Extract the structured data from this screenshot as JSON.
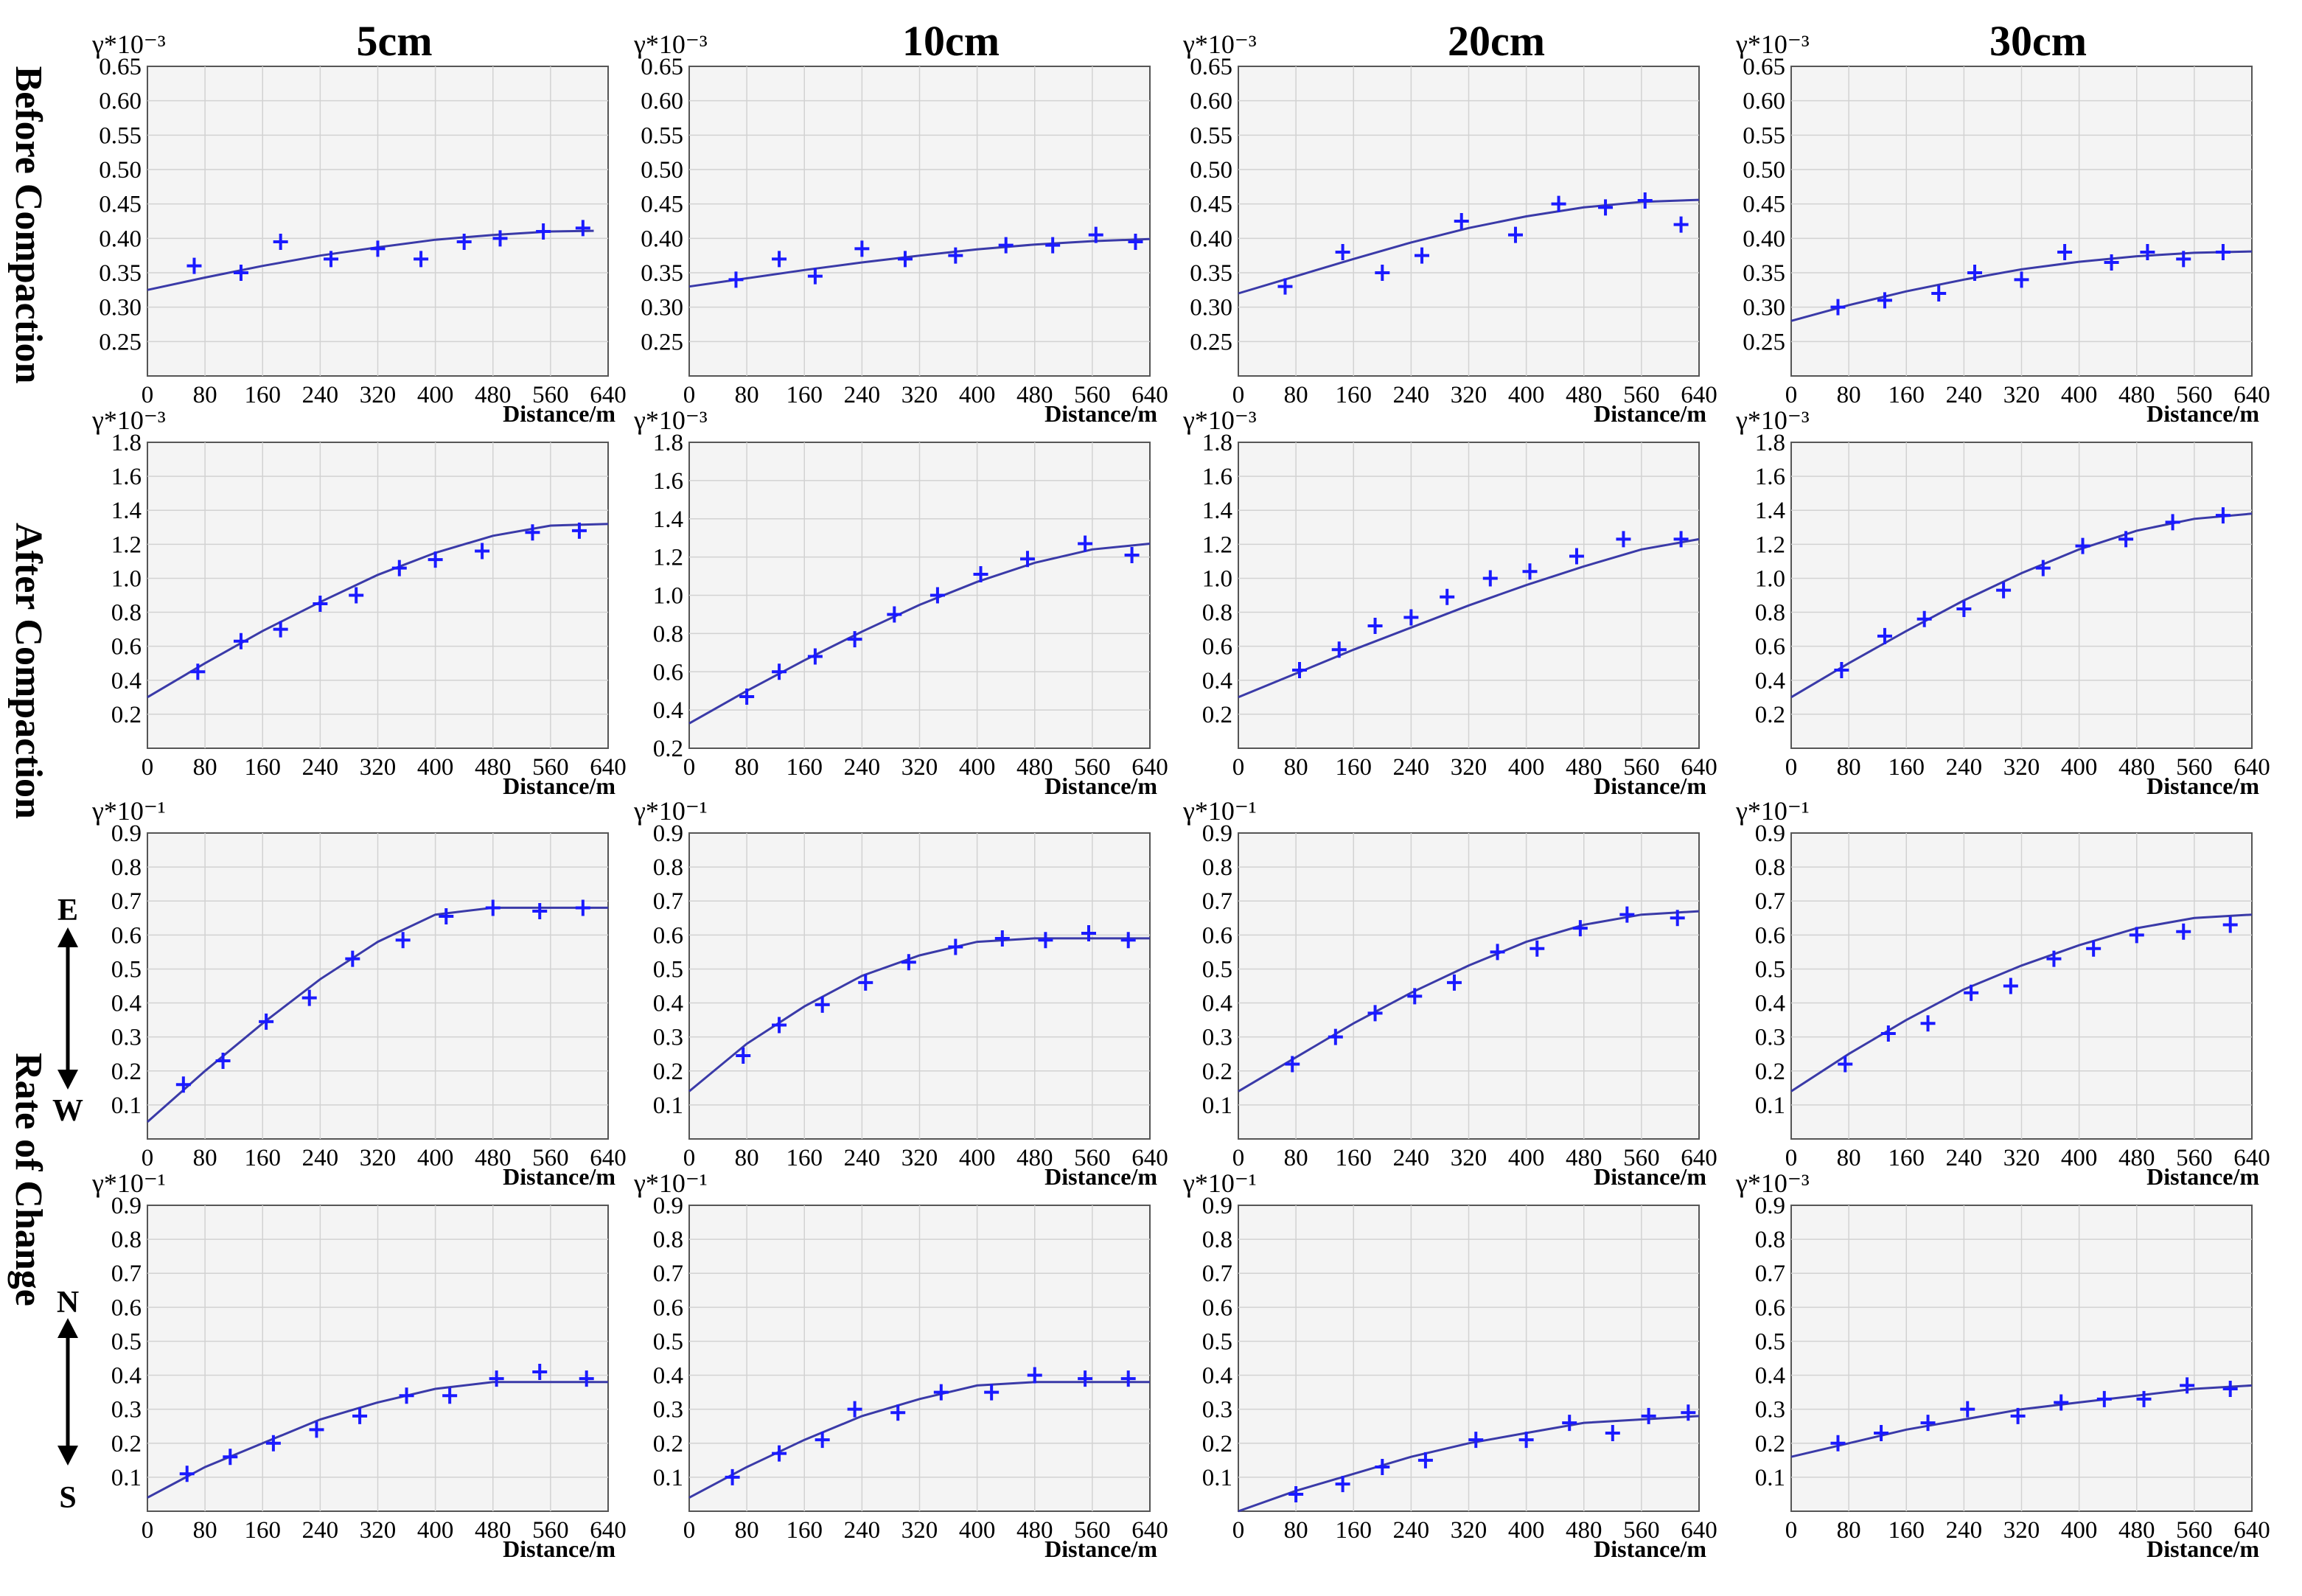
{
  "column_titles": [
    "5cm",
    "10cm",
    "20cm",
    "30cm"
  ],
  "row_labels": {
    "before": "Before Compaction",
    "after": "After Compaction",
    "rate": "Rate of Change"
  },
  "direction_labels": {
    "ew_top": "E",
    "ew_bottom": "W",
    "ns_top": "N",
    "ns_bottom": "S"
  },
  "colors": {
    "series": "#1a1aff",
    "fit_line": "#3a3aa8",
    "plot_bg": "#f4f4f4",
    "grid": "#d2d2d2"
  },
  "chart_data": [
    {
      "type": "scatter",
      "row": 0,
      "col": 0,
      "ylabel": "γ*10⁻³",
      "xlabel": "Distance/m",
      "xticks": [
        "0",
        "80",
        "160",
        "240",
        "320",
        "400",
        "480",
        "560",
        "640"
      ],
      "xlim": [
        0,
        640
      ],
      "yticks": [
        "0.25",
        "0.30",
        "0.35",
        "0.40",
        "0.45",
        "0.50",
        "0.55",
        "0.60",
        "0.65"
      ],
      "ylim": [
        0.2,
        0.65
      ],
      "x": [
        65,
        130,
        185,
        255,
        320,
        380,
        440,
        490,
        550,
        605
      ],
      "y": [
        0.36,
        0.35,
        0.395,
        0.37,
        0.385,
        0.37,
        0.395,
        0.4,
        0.41,
        0.415
      ],
      "fit_x": [
        0,
        80,
        160,
        240,
        320,
        400,
        480,
        560,
        620
      ],
      "fit_y": [
        0.325,
        0.343,
        0.36,
        0.375,
        0.387,
        0.398,
        0.405,
        0.41,
        0.411
      ]
    },
    {
      "type": "scatter",
      "row": 0,
      "col": 1,
      "ylabel": "γ*10⁻³",
      "xlabel": "Distance/m",
      "xticks": [
        "0",
        "80",
        "160",
        "240",
        "320",
        "400",
        "480",
        "560",
        "640"
      ],
      "xlim": [
        0,
        640
      ],
      "yticks": [
        "0.25",
        "0.30",
        "0.35",
        "0.40",
        "0.45",
        "0.50",
        "0.55",
        "0.60",
        "0.65"
      ],
      "ylim": [
        0.2,
        0.65
      ],
      "x": [
        65,
        125,
        175,
        240,
        300,
        370,
        440,
        505,
        565,
        620
      ],
      "y": [
        0.34,
        0.37,
        0.345,
        0.385,
        0.37,
        0.375,
        0.39,
        0.39,
        0.405,
        0.395
      ],
      "fit_x": [
        0,
        80,
        160,
        240,
        320,
        400,
        480,
        560,
        640
      ],
      "fit_y": [
        0.33,
        0.342,
        0.354,
        0.365,
        0.375,
        0.384,
        0.391,
        0.396,
        0.399
      ]
    },
    {
      "type": "scatter",
      "row": 0,
      "col": 2,
      "ylabel": "γ*10⁻³",
      "xlabel": "Distance/m",
      "xticks": [
        "0",
        "80",
        "160",
        "240",
        "320",
        "400",
        "480",
        "560",
        "640"
      ],
      "xlim": [
        0,
        640
      ],
      "yticks": [
        "0.25",
        "0.30",
        "0.35",
        "0.40",
        "0.45",
        "0.50",
        "0.55",
        "0.60",
        "0.65"
      ],
      "ylim": [
        0.2,
        0.65
      ],
      "x": [
        65,
        145,
        200,
        255,
        310,
        385,
        445,
        510,
        565,
        615
      ],
      "y": [
        0.33,
        0.38,
        0.35,
        0.375,
        0.425,
        0.405,
        0.45,
        0.445,
        0.455,
        0.42
      ],
      "fit_x": [
        0,
        80,
        160,
        240,
        320,
        400,
        480,
        560,
        640
      ],
      "fit_y": [
        0.32,
        0.345,
        0.37,
        0.394,
        0.415,
        0.432,
        0.445,
        0.453,
        0.456
      ]
    },
    {
      "type": "scatter",
      "row": 0,
      "col": 3,
      "ylabel": "γ*10⁻³",
      "xlabel": "Distance/m",
      "xticks": [
        "0",
        "80",
        "160",
        "240",
        "320",
        "400",
        "480",
        "560",
        "640"
      ],
      "xlim": [
        0,
        640
      ],
      "yticks": [
        "0.25",
        "0.30",
        "0.35",
        "0.40",
        "0.45",
        "0.50",
        "0.55",
        "0.60",
        "0.65"
      ],
      "ylim": [
        0.2,
        0.65
      ],
      "x": [
        65,
        130,
        205,
        255,
        320,
        380,
        445,
        495,
        545,
        600
      ],
      "y": [
        0.3,
        0.31,
        0.32,
        0.35,
        0.34,
        0.38,
        0.365,
        0.38,
        0.37,
        0.38
      ],
      "fit_x": [
        0,
        80,
        160,
        240,
        320,
        400,
        480,
        560,
        640
      ],
      "fit_y": [
        0.28,
        0.303,
        0.323,
        0.34,
        0.355,
        0.366,
        0.374,
        0.379,
        0.381
      ]
    },
    {
      "type": "scatter",
      "row": 1,
      "col": 0,
      "ylabel": "γ*10⁻³",
      "xlabel": "Distance/m",
      "xticks": [
        "0",
        "80",
        "160",
        "240",
        "320",
        "400",
        "480",
        "560",
        "640"
      ],
      "xlim": [
        0,
        640
      ],
      "yticks": [
        "0.2",
        "0.4",
        "0.6",
        "0.8",
        "1.0",
        "1.2",
        "1.4",
        "1.6",
        "1.8"
      ],
      "ylim": [
        0,
        1.8
      ],
      "x": [
        70,
        130,
        185,
        240,
        290,
        350,
        400,
        465,
        535,
        600
      ],
      "y": [
        0.45,
        0.63,
        0.7,
        0.85,
        0.9,
        1.06,
        1.11,
        1.16,
        1.27,
        1.28
      ],
      "fit_x": [
        0,
        80,
        160,
        240,
        320,
        400,
        480,
        560,
        640
      ],
      "fit_y": [
        0.3,
        0.5,
        0.69,
        0.86,
        1.02,
        1.15,
        1.25,
        1.31,
        1.32
      ]
    },
    {
      "type": "scatter",
      "row": 1,
      "col": 1,
      "ylabel": "γ*10⁻³",
      "xlabel": "Distance/m",
      "xticks": [
        "0",
        "80",
        "160",
        "240",
        "320",
        "400",
        "480",
        "560",
        "640"
      ],
      "xlim": [
        0,
        640
      ],
      "yticks": [
        "0.2",
        "0.4",
        "0.6",
        "0.8",
        "1.0",
        "1.2",
        "1.4",
        "1.6",
        "1.8"
      ],
      "ylim": [
        0.2,
        1.8
      ],
      "x": [
        80,
        125,
        175,
        230,
        285,
        345,
        405,
        470,
        550,
        615
      ],
      "y": [
        0.47,
        0.6,
        0.68,
        0.77,
        0.9,
        1.0,
        1.11,
        1.19,
        1.27,
        1.21
      ],
      "fit_x": [
        0,
        80,
        160,
        240,
        320,
        400,
        480,
        560,
        640
      ],
      "fit_y": [
        0.33,
        0.5,
        0.66,
        0.81,
        0.95,
        1.07,
        1.17,
        1.24,
        1.27
      ]
    },
    {
      "type": "scatter",
      "row": 1,
      "col": 2,
      "ylabel": "γ*10⁻³",
      "xlabel": "Distance/m",
      "xticks": [
        "0",
        "80",
        "160",
        "240",
        "320",
        "400",
        "480",
        "560",
        "640"
      ],
      "xlim": [
        0,
        640
      ],
      "yticks": [
        "0.2",
        "0.4",
        "0.6",
        "0.8",
        "1.0",
        "1.2",
        "1.4",
        "1.6",
        "1.8"
      ],
      "ylim": [
        0,
        1.8
      ],
      "x": [
        85,
        140,
        190,
        240,
        290,
        350,
        405,
        470,
        535,
        615
      ],
      "y": [
        0.46,
        0.58,
        0.72,
        0.77,
        0.89,
        1.0,
        1.04,
        1.13,
        1.23,
        1.23
      ],
      "fit_x": [
        0,
        80,
        160,
        240,
        320,
        400,
        480,
        560,
        640
      ],
      "fit_y": [
        0.3,
        0.44,
        0.58,
        0.71,
        0.84,
        0.96,
        1.07,
        1.17,
        1.23
      ]
    },
    {
      "type": "scatter",
      "row": 1,
      "col": 3,
      "ylabel": "γ*10⁻³",
      "xlabel": "Distance/m",
      "xticks": [
        "0",
        "80",
        "160",
        "240",
        "320",
        "400",
        "480",
        "560",
        "640"
      ],
      "xlim": [
        0,
        640
      ],
      "yticks": [
        "0.2",
        "0.4",
        "0.6",
        "0.8",
        "1.0",
        "1.2",
        "1.4",
        "1.6",
        "1.8"
      ],
      "ylim": [
        0,
        1.8
      ],
      "x": [
        70,
        130,
        185,
        240,
        295,
        350,
        405,
        465,
        530,
        600
      ],
      "y": [
        0.46,
        0.66,
        0.76,
        0.82,
        0.93,
        1.06,
        1.19,
        1.23,
        1.33,
        1.37
      ],
      "fit_x": [
        0,
        80,
        160,
        240,
        320,
        400,
        480,
        560,
        640
      ],
      "fit_y": [
        0.3,
        0.5,
        0.69,
        0.87,
        1.03,
        1.17,
        1.28,
        1.35,
        1.38
      ]
    },
    {
      "type": "scatter",
      "row": 2,
      "col": 0,
      "ylabel": "γ*10⁻¹",
      "xlabel": "Distance/m",
      "xticks": [
        "0",
        "80",
        "160",
        "240",
        "320",
        "400",
        "480",
        "560",
        "640"
      ],
      "xlim": [
        0,
        640
      ],
      "yticks": [
        "0.1",
        "0.2",
        "0.3",
        "0.4",
        "0.5",
        "0.6",
        "0.7",
        "0.8",
        "0.9"
      ],
      "ylim": [
        0,
        0.9
      ],
      "x": [
        50,
        105,
        165,
        225,
        285,
        355,
        415,
        480,
        545,
        605
      ],
      "y": [
        0.16,
        0.23,
        0.345,
        0.415,
        0.53,
        0.585,
        0.655,
        0.68,
        0.67,
        0.68
      ],
      "fit_x": [
        0,
        80,
        160,
        240,
        320,
        400,
        480,
        560,
        640
      ],
      "fit_y": [
        0.05,
        0.2,
        0.34,
        0.47,
        0.58,
        0.66,
        0.68,
        0.68,
        0.68
      ]
    },
    {
      "type": "scatter",
      "row": 2,
      "col": 1,
      "ylabel": "γ*10⁻¹",
      "xlabel": "Distance/m",
      "xticks": [
        "0",
        "80",
        "160",
        "240",
        "320",
        "400",
        "480",
        "560",
        "640"
      ],
      "xlim": [
        0,
        640
      ],
      "yticks": [
        "0.1",
        "0.2",
        "0.3",
        "0.4",
        "0.5",
        "0.6",
        "0.7",
        "0.8",
        "0.9"
      ],
      "ylim": [
        0,
        0.9
      ],
      "x": [
        75,
        125,
        185,
        245,
        305,
        370,
        435,
        495,
        555,
        610
      ],
      "y": [
        0.245,
        0.335,
        0.395,
        0.46,
        0.52,
        0.565,
        0.59,
        0.585,
        0.605,
        0.585
      ],
      "fit_x": [
        0,
        80,
        160,
        240,
        320,
        400,
        480,
        560,
        640
      ],
      "fit_y": [
        0.14,
        0.28,
        0.39,
        0.48,
        0.54,
        0.58,
        0.59,
        0.59,
        0.59
      ]
    },
    {
      "type": "scatter",
      "row": 2,
      "col": 2,
      "ylabel": "γ*10⁻¹",
      "xlabel": "Distance/m",
      "xticks": [
        "0",
        "80",
        "160",
        "240",
        "320",
        "400",
        "480",
        "560",
        "640"
      ],
      "xlim": [
        0,
        640
      ],
      "yticks": [
        "0.1",
        "0.2",
        "0.3",
        "0.4",
        "0.5",
        "0.6",
        "0.7",
        "0.8",
        "0.9"
      ],
      "ylim": [
        0,
        0.9
      ],
      "x": [
        75,
        135,
        190,
        245,
        300,
        360,
        415,
        475,
        540,
        610
      ],
      "y": [
        0.22,
        0.3,
        0.37,
        0.42,
        0.46,
        0.55,
        0.56,
        0.62,
        0.66,
        0.65
      ],
      "fit_x": [
        0,
        80,
        160,
        240,
        320,
        400,
        480,
        560,
        640
      ],
      "fit_y": [
        0.14,
        0.24,
        0.34,
        0.43,
        0.51,
        0.58,
        0.63,
        0.66,
        0.67
      ]
    },
    {
      "type": "scatter",
      "row": 2,
      "col": 3,
      "ylabel": "γ*10⁻¹",
      "xlabel": "Distance/m",
      "xticks": [
        "0",
        "80",
        "160",
        "240",
        "320",
        "400",
        "480",
        "560",
        "640"
      ],
      "xlim": [
        0,
        640
      ],
      "yticks": [
        "0.1",
        "0.2",
        "0.3",
        "0.4",
        "0.5",
        "0.6",
        "0.7",
        "0.8",
        "0.9"
      ],
      "ylim": [
        0,
        0.9
      ],
      "x": [
        75,
        135,
        190,
        250,
        305,
        365,
        420,
        480,
        545,
        610
      ],
      "y": [
        0.22,
        0.31,
        0.34,
        0.43,
        0.45,
        0.53,
        0.56,
        0.6,
        0.61,
        0.63
      ],
      "fit_x": [
        0,
        80,
        160,
        240,
        320,
        400,
        480,
        560,
        640
      ],
      "fit_y": [
        0.14,
        0.25,
        0.35,
        0.44,
        0.51,
        0.57,
        0.62,
        0.65,
        0.66
      ]
    },
    {
      "type": "scatter",
      "row": 3,
      "col": 0,
      "ylabel": "γ*10⁻¹",
      "xlabel": "Distance/m",
      "xticks": [
        "0",
        "80",
        "160",
        "240",
        "320",
        "400",
        "480",
        "560",
        "640"
      ],
      "xlim": [
        0,
        640
      ],
      "yticks": [
        "0.1",
        "0.2",
        "0.3",
        "0.4",
        "0.5",
        "0.6",
        "0.7",
        "0.8",
        "0.9"
      ],
      "ylim": [
        0,
        0.9
      ],
      "x": [
        55,
        115,
        175,
        235,
        295,
        360,
        420,
        485,
        545,
        610
      ],
      "y": [
        0.11,
        0.16,
        0.2,
        0.24,
        0.28,
        0.34,
        0.34,
        0.39,
        0.41,
        0.39
      ],
      "fit_x": [
        0,
        80,
        160,
        240,
        320,
        400,
        480,
        560,
        640
      ],
      "fit_y": [
        0.04,
        0.13,
        0.2,
        0.27,
        0.32,
        0.36,
        0.38,
        0.38,
        0.38
      ]
    },
    {
      "type": "scatter",
      "row": 3,
      "col": 1,
      "ylabel": "γ*10⁻¹",
      "xlabel": "Distance/m",
      "xticks": [
        "0",
        "80",
        "160",
        "240",
        "320",
        "400",
        "480",
        "560",
        "640"
      ],
      "xlim": [
        0,
        640
      ],
      "yticks": [
        "0.1",
        "0.2",
        "0.3",
        "0.4",
        "0.5",
        "0.6",
        "0.7",
        "0.8",
        "0.9"
      ],
      "ylim": [
        0,
        0.9
      ],
      "x": [
        60,
        125,
        185,
        230,
        290,
        350,
        420,
        480,
        550,
        610
      ],
      "y": [
        0.1,
        0.17,
        0.21,
        0.3,
        0.29,
        0.35,
        0.35,
        0.4,
        0.39,
        0.39
      ],
      "fit_x": [
        0,
        80,
        160,
        240,
        320,
        400,
        480,
        560,
        640
      ],
      "fit_y": [
        0.04,
        0.13,
        0.21,
        0.28,
        0.33,
        0.37,
        0.38,
        0.38,
        0.38
      ]
    },
    {
      "type": "scatter",
      "row": 3,
      "col": 2,
      "ylabel": "γ*10⁻¹",
      "xlabel": "Distance/m",
      "xticks": [
        "0",
        "80",
        "160",
        "240",
        "320",
        "400",
        "480",
        "560",
        "640"
      ],
      "xlim": [
        0,
        640
      ],
      "yticks": [
        "0.1",
        "0.2",
        "0.3",
        "0.4",
        "0.5",
        "0.6",
        "0.7",
        "0.8",
        "0.9"
      ],
      "ylim": [
        0,
        0.9
      ],
      "x": [
        80,
        145,
        200,
        260,
        330,
        400,
        460,
        520,
        570,
        625
      ],
      "y": [
        0.05,
        0.08,
        0.13,
        0.15,
        0.21,
        0.21,
        0.26,
        0.23,
        0.28,
        0.29
      ],
      "fit_x": [
        0,
        80,
        160,
        240,
        320,
        400,
        480,
        560,
        640
      ],
      "fit_y": [
        0.0,
        0.06,
        0.11,
        0.16,
        0.2,
        0.23,
        0.26,
        0.27,
        0.28
      ]
    },
    {
      "type": "scatter",
      "row": 3,
      "col": 3,
      "ylabel": "γ*10⁻³",
      "xlabel": "Distance/m",
      "xticks": [
        "0",
        "80",
        "160",
        "240",
        "320",
        "400",
        "480",
        "560",
        "640"
      ],
      "xlim": [
        0,
        640
      ],
      "yticks": [
        "0.1",
        "0.2",
        "0.3",
        "0.4",
        "0.5",
        "0.6",
        "0.7",
        "0.8",
        "0.9"
      ],
      "ylim": [
        0,
        0.9
      ],
      "x": [
        65,
        125,
        190,
        245,
        315,
        375,
        435,
        490,
        550,
        610
      ],
      "y": [
        0.2,
        0.23,
        0.26,
        0.3,
        0.28,
        0.32,
        0.33,
        0.33,
        0.37,
        0.36
      ],
      "fit_x": [
        0,
        80,
        160,
        240,
        320,
        400,
        480,
        560,
        640
      ],
      "fit_y": [
        0.16,
        0.2,
        0.24,
        0.27,
        0.3,
        0.32,
        0.34,
        0.36,
        0.37
      ]
    }
  ]
}
